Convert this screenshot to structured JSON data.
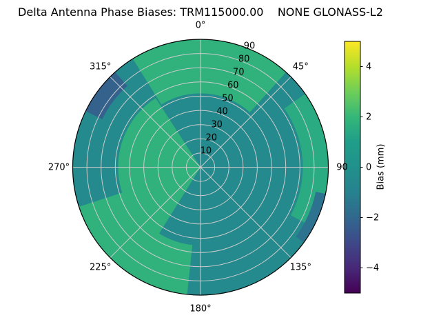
{
  "title": "Delta Antenna Phase Biases: TRM115000.00    NONE GLONASS-L2",
  "chart_data": {
    "type": "heatmap",
    "projection": "polar",
    "title": "Delta Antenna Phase Biases: TRM115000.00    NONE GLONASS-L2",
    "theta_zero_location": "N",
    "theta_direction": "clockwise",
    "grid_color": "#cccccc",
    "angle_ticks": [
      {
        "angle": 0,
        "label": "0°"
      },
      {
        "angle": 45,
        "label": "45°"
      },
      {
        "angle": 90,
        "label": "90"
      },
      {
        "angle": 135,
        "label": "135°"
      },
      {
        "angle": 180,
        "label": "180°"
      },
      {
        "angle": 225,
        "label": "225°"
      },
      {
        "angle": 270,
        "label": "270°"
      },
      {
        "angle": 315,
        "label": "315°"
      }
    ],
    "radial_ticks": [
      10,
      20,
      30,
      40,
      50,
      60,
      70,
      80,
      90
    ],
    "radial_label_angle": 22.5,
    "radial_max": 90,
    "background_value": -0.5,
    "regions": [
      {
        "az": [
          -32,
          42
        ],
        "zen": [
          52,
          90
        ],
        "value": 1.8
      },
      {
        "az": [
          55,
          118
        ],
        "zen": [
          72,
          90
        ],
        "value": 1.5
      },
      {
        "az": [
          212,
          327
        ],
        "zen": [
          0,
          58
        ],
        "value": 1.8
      },
      {
        "az": [
          186,
          252
        ],
        "zen": [
          55,
          90
        ],
        "value": 1.8
      },
      {
        "az": [
          296,
          318
        ],
        "zen": [
          77,
          90
        ],
        "value": -2.2
      },
      {
        "az": [
          102,
          126
        ],
        "zen": [
          83,
          90
        ],
        "value": -1.6
      }
    ],
    "colorbar": {
      "label": "Bias (mm)",
      "range": [
        -5,
        5
      ],
      "ticks": [
        {
          "value": 4,
          "label": "4"
        },
        {
          "value": 2,
          "label": "2"
        },
        {
          "value": 0,
          "label": "0"
        },
        {
          "value": -2,
          "label": "−2"
        },
        {
          "value": -4,
          "label": "−4"
        }
      ],
      "colormap": "viridis",
      "stops": [
        [
          0,
          "#440154"
        ],
        [
          0.1,
          "#482878"
        ],
        [
          0.2,
          "#3e4989"
        ],
        [
          0.3,
          "#31688e"
        ],
        [
          0.4,
          "#26828e"
        ],
        [
          0.5,
          "#21918c"
        ],
        [
          0.6,
          "#1f9e89"
        ],
        [
          0.7,
          "#35b779"
        ],
        [
          0.8,
          "#6ece58"
        ],
        [
          0.9,
          "#b5de2b"
        ],
        [
          1,
          "#fde725"
        ]
      ]
    }
  }
}
